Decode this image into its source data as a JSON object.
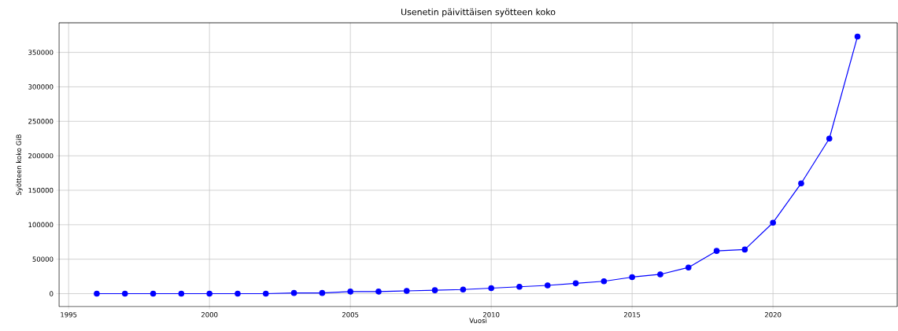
{
  "chart_data": {
    "type": "line",
    "title": "Usenetin päivittäisen syötteen koko",
    "xlabel": "Vuosi",
    "ylabel": "Syötteen koko GiB",
    "x": [
      1996,
      1997,
      1998,
      1999,
      2000,
      2001,
      2002,
      2003,
      2004,
      2005,
      2006,
      2007,
      2008,
      2009,
      2010,
      2011,
      2012,
      2013,
      2014,
      2015,
      2016,
      2017,
      2018,
      2019,
      2020,
      2021,
      2022,
      2023
    ],
    "series": [
      {
        "color": "#0000ff",
        "values": [
          0,
          0,
          0,
          0,
          0,
          0,
          0,
          1000,
          1000,
          3000,
          3000,
          4000,
          5000,
          6000,
          8000,
          10000,
          12000,
          15000,
          18000,
          24000,
          28000,
          38000,
          62000,
          64000,
          103000,
          160000,
          225000,
          373000
        ]
      }
    ],
    "xlim": [
      1994.66,
      2024.41
    ],
    "ylim": [
      -18800,
      392900
    ],
    "xticks": [
      1995,
      2000,
      2005,
      2010,
      2015,
      2020
    ],
    "yticks": [
      0,
      50000,
      100000,
      150000,
      200000,
      250000,
      300000,
      350000
    ],
    "grid": true,
    "marker": "circle",
    "line_style": "solid"
  }
}
